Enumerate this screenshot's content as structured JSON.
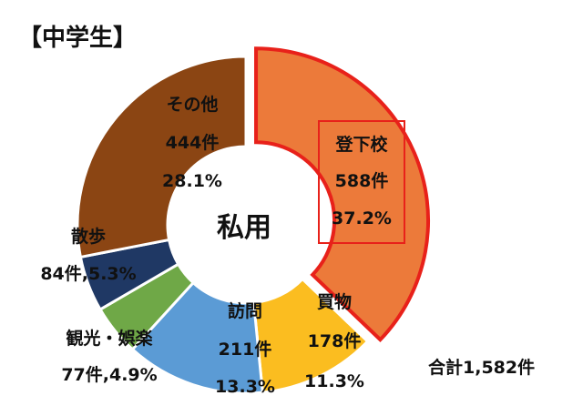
{
  "chart_data": {
    "type": "donut",
    "title": "【中学生】",
    "center_label": "私用",
    "total_label": "合計1,582件",
    "highlight_index": 0,
    "highlight_color": "#e8211a",
    "slices": [
      {
        "name": "登下校",
        "count_label": "588件",
        "percent_label": "37.2%",
        "count": 588,
        "percent": 37.2,
        "color": "#ec7a3a",
        "text_color": "#111111"
      },
      {
        "name": "買物",
        "count_label": "178件",
        "percent_label": "11.3%",
        "count": 178,
        "percent": 11.3,
        "color": "#fbbd20",
        "text_color": "#111111"
      },
      {
        "name": "訪問",
        "count_label": "211件",
        "percent_label": "13.3%",
        "count": 211,
        "percent": 13.3,
        "color": "#5b9bd5",
        "text_color": "#111111"
      },
      {
        "name": "観光・娯楽",
        "label": "77件,4.9%",
        "count": 77,
        "percent": 4.9,
        "color": "#6fa847",
        "text_color": "#111111"
      },
      {
        "name": "散歩",
        "label": "84件,5.3%",
        "count": 84,
        "percent": 5.3,
        "color": "#1f3864",
        "text_color": "#111111"
      },
      {
        "name": "その他",
        "count_label": "444件",
        "percent_label": "28.1%",
        "count": 444,
        "percent": 28.1,
        "color": "#8b4513",
        "text_color": "#111111"
      }
    ]
  }
}
